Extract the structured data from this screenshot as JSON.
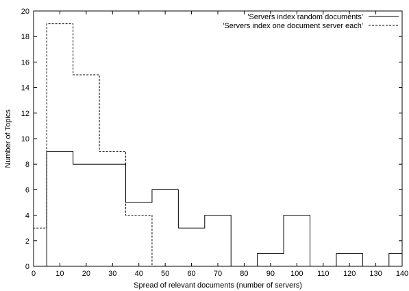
{
  "chart_data": {
    "type": "line",
    "xlabel": "Spread of relevant documents (number of servers)",
    "ylabel": "Number of Topics",
    "xlim": [
      0,
      140
    ],
    "ylim": [
      0,
      20
    ],
    "xticks": [
      0,
      10,
      20,
      30,
      40,
      50,
      60,
      70,
      80,
      90,
      100,
      110,
      120,
      130,
      140
    ],
    "yticks": [
      0,
      2,
      4,
      6,
      8,
      10,
      12,
      14,
      16,
      18,
      20
    ],
    "grid": false,
    "legend_position": "top-right",
    "series": [
      {
        "name": "'Servers index random documents'",
        "style": "solid",
        "color": "#000000",
        "bin_edges": [
          5,
          15,
          35,
          45,
          55,
          65,
          75,
          85,
          95,
          105,
          115,
          125,
          135,
          140
        ],
        "values": [
          9,
          8,
          5,
          6,
          3,
          4,
          0,
          1,
          4,
          0,
          1,
          0,
          1
        ]
      },
      {
        "name": "'Servers index one document server each'",
        "style": "dashed",
        "color": "#000000",
        "bin_edges": [
          0,
          5,
          15,
          25,
          35,
          45
        ],
        "values": [
          3,
          19,
          15,
          9,
          4
        ]
      }
    ]
  }
}
